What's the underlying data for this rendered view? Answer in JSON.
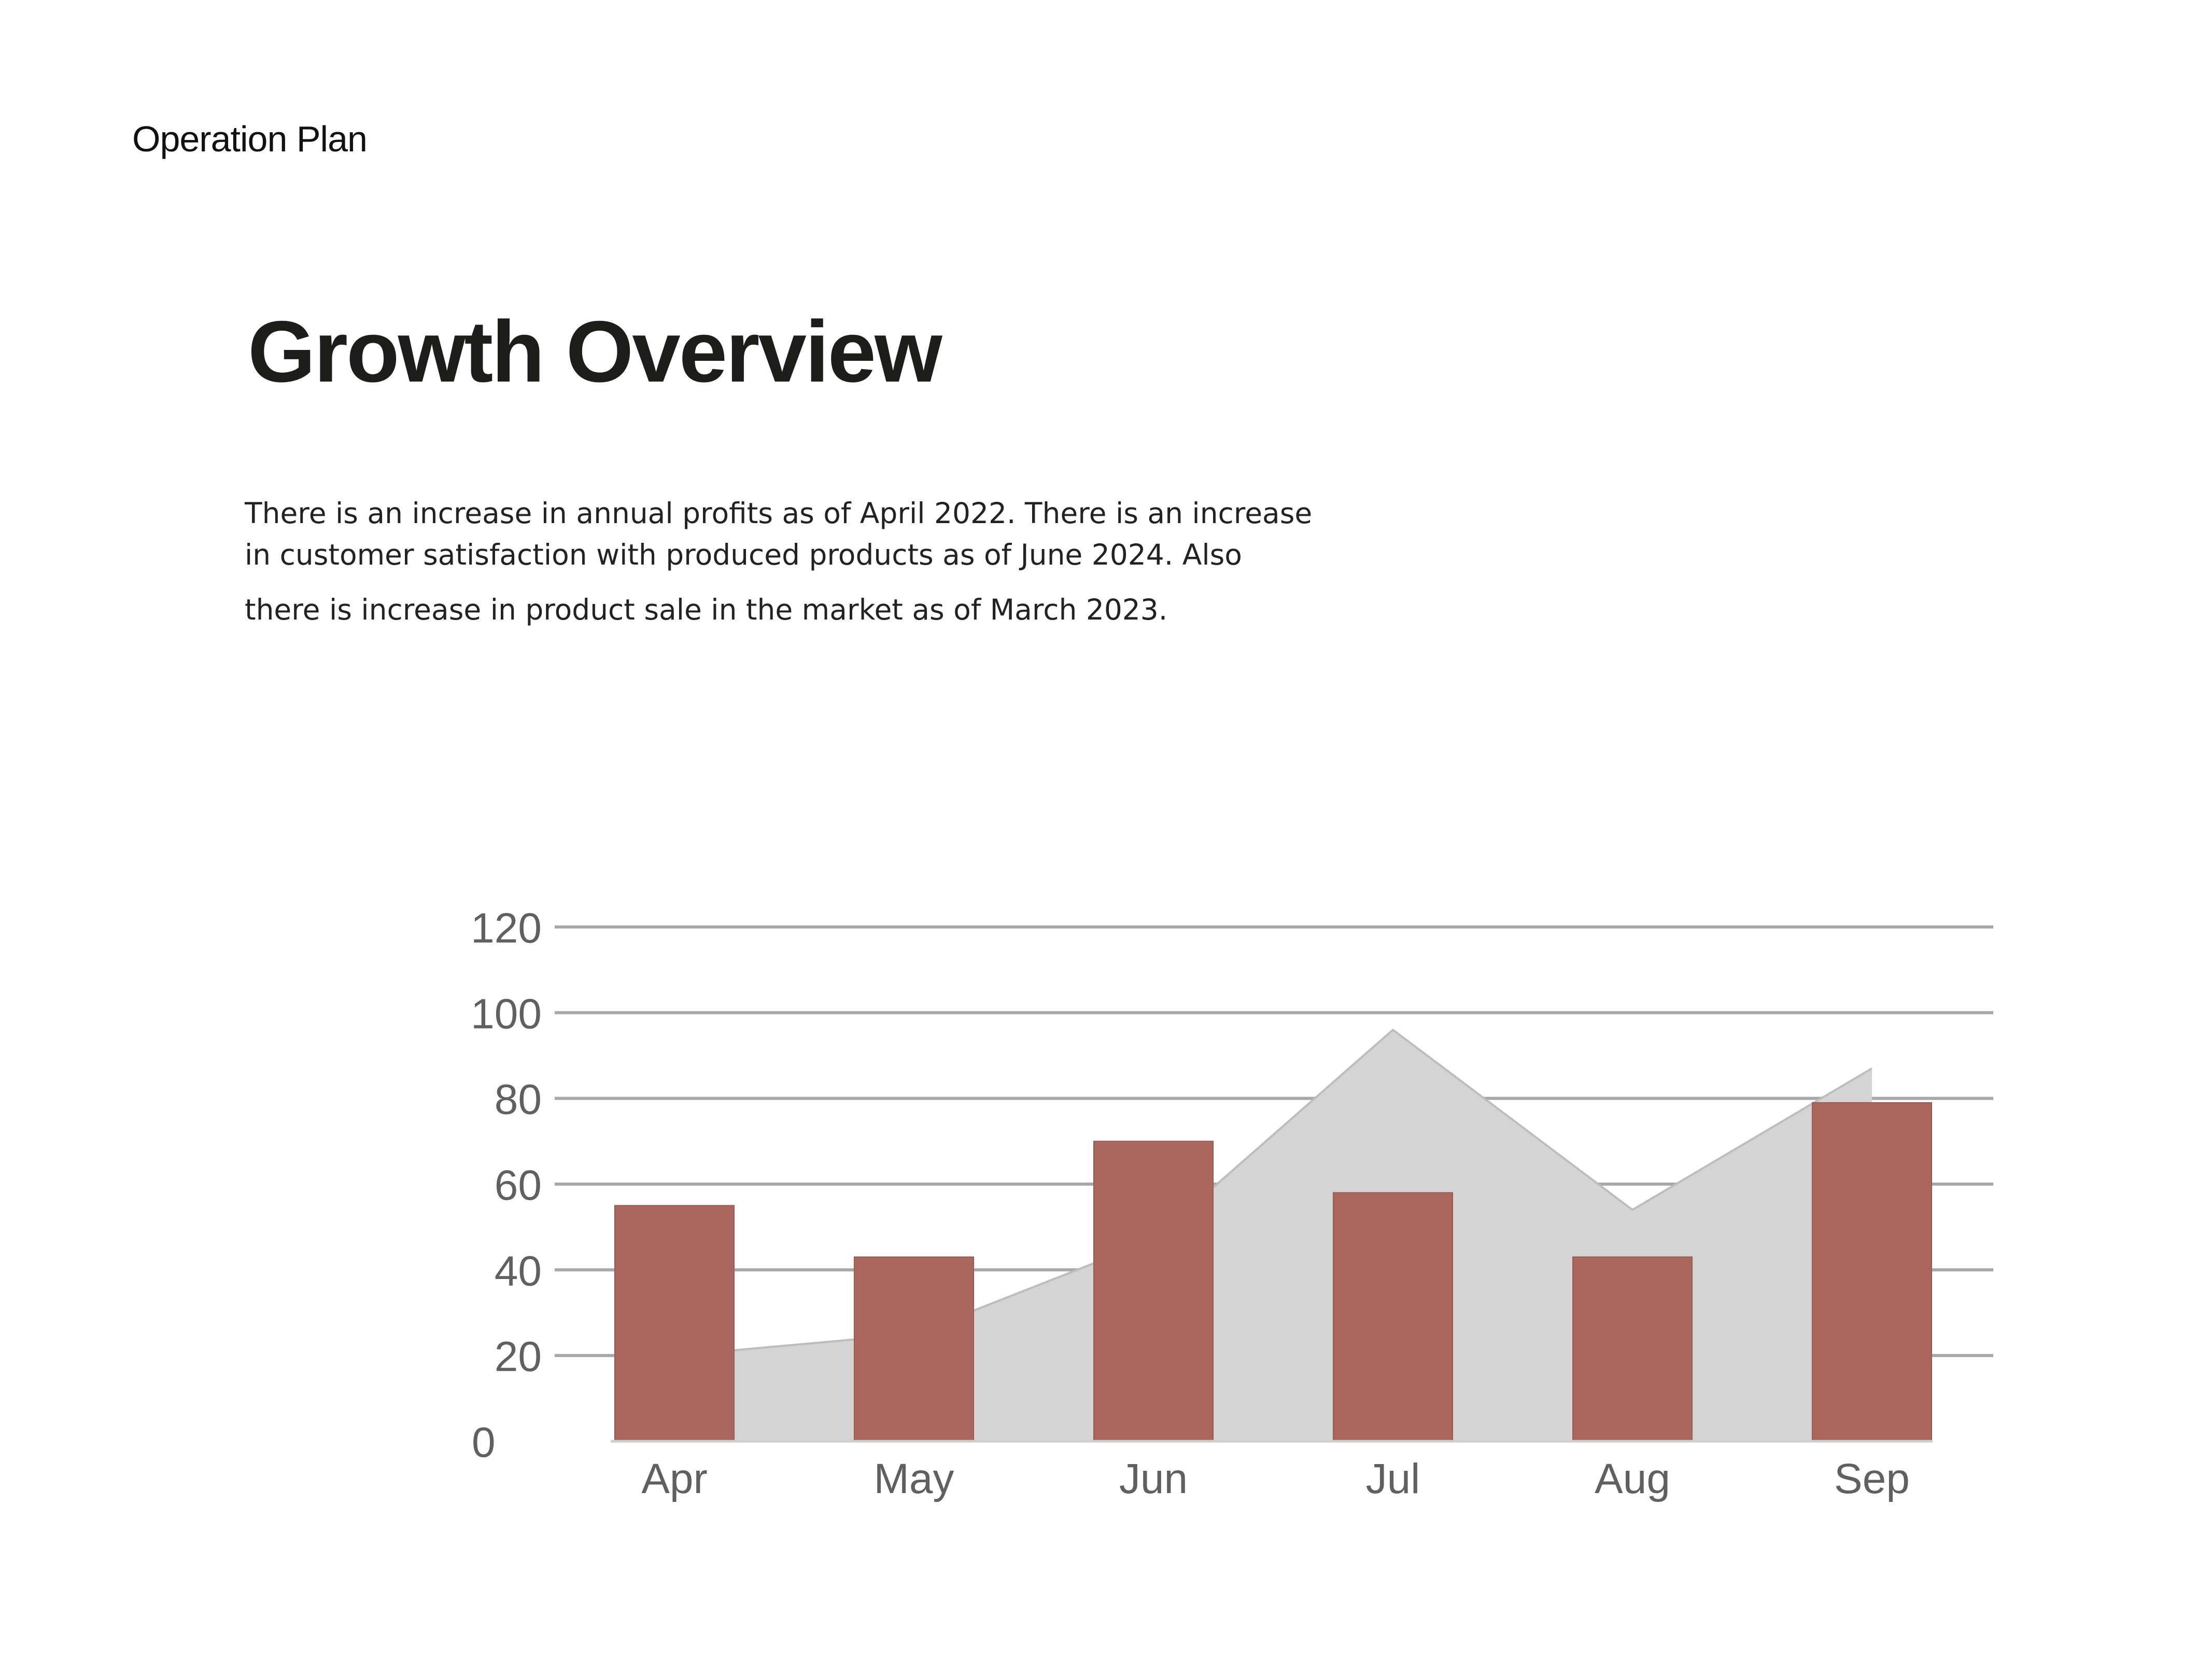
{
  "page": {
    "header_label": "Operation Plan",
    "title": "Growth Overview",
    "description_lines": [
      "There is an increase in annual profits as of April 2022. There is an increase",
      "in customer satisfaction with produced products as of June 2024. Also",
      "there is increase in product sale in the market as of March 2023."
    ]
  },
  "chart_data": {
    "type": "bar",
    "categories": [
      "Apr",
      "May",
      "Jun",
      "Jul",
      "Aug",
      "Sep"
    ],
    "series": [
      {
        "type": "area",
        "values": [
          20,
          25,
          47,
          96,
          54,
          87
        ],
        "color": "#d4d4d4"
      },
      {
        "type": "bar",
        "values": [
          55,
          43,
          70,
          58,
          43,
          79
        ],
        "color": "#ab675f"
      }
    ],
    "title": "",
    "xlabel": "",
    "ylabel": "",
    "ylim": [
      0,
      120
    ],
    "yticks": [
      0,
      20,
      40,
      60,
      80,
      100,
      120
    ],
    "grid": true,
    "legend": "none"
  }
}
